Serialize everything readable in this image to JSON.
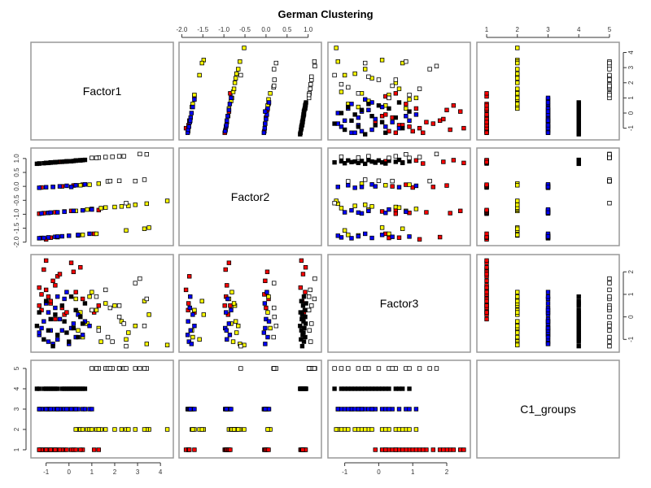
{
  "chart_data": {
    "type": "scatter",
    "title": "German Clustering",
    "variables": [
      "Factor1",
      "Factor2",
      "Factor3",
      "C1_groups"
    ],
    "ranges": [
      [
        -1.45,
        4.35
      ],
      [
        -1.95,
        1.2
      ],
      [
        -1.35,
        2.55
      ],
      [
        0.84,
        5.16
      ]
    ],
    "ticks": [
      [
        -1,
        0,
        1,
        2,
        3,
        4
      ],
      [
        "-2.0",
        "-1.5",
        "-1.0",
        "-0.5",
        "0.0",
        "0.5",
        "1.0"
      ],
      [
        -1,
        0,
        1,
        2
      ],
      [
        1,
        2,
        3,
        4,
        5
      ]
    ],
    "group_colors": {
      "1": "#ff0000",
      "2": "#ffff00",
      "3": "#0000ff",
      "4": "#000000",
      "5": "#ffffff"
    },
    "marker": "filled-square-black-border",
    "grid": false,
    "points_columns": [
      "Factor1",
      "Factor2",
      "Factor3",
      "C1_groups"
    ],
    "points": [
      [
        -1.2,
        -1.85,
        0.3,
        1
      ],
      [
        -1.0,
        -1.9,
        1.2,
        1
      ],
      [
        -0.8,
        -1.84,
        0.6,
        1
      ],
      [
        -0.5,
        -1.82,
        1.8,
        1
      ],
      [
        1.1,
        -1.7,
        0.2,
        1
      ],
      [
        -1.3,
        -0.98,
        0.5,
        1
      ],
      [
        -1.1,
        -0.96,
        2.1,
        1
      ],
      [
        -0.9,
        -0.95,
        0.9,
        1
      ],
      [
        -0.6,
        -0.93,
        1.4,
        1
      ],
      [
        -0.2,
        -0.9,
        0.1,
        1
      ],
      [
        0.1,
        -0.88,
        2.4,
        1
      ],
      [
        -1.2,
        -0.04,
        1.0,
        1
      ],
      [
        -0.7,
        -0.02,
        1.6,
        1
      ],
      [
        -0.3,
        0.0,
        0.4,
        1
      ],
      [
        0.2,
        0.03,
        2.0,
        1
      ],
      [
        0.6,
        0.06,
        0.8,
        1
      ],
      [
        -1.3,
        0.82,
        1.3,
        1
      ],
      [
        -1.0,
        0.84,
        2.5,
        1
      ],
      [
        -0.8,
        0.86,
        0.7,
        1
      ],
      [
        -0.4,
        0.88,
        1.9,
        1
      ],
      [
        -0.1,
        0.9,
        0.2,
        1
      ],
      [
        0.3,
        0.93,
        1.1,
        1
      ],
      [
        0.5,
        0.94,
        2.2,
        1
      ],
      [
        -0.6,
        0.87,
        -0.1,
        1
      ],
      [
        1.3,
        -0.85,
        0.5,
        1
      ],
      [
        0.4,
        -1.76,
        -0.6,
        2
      ],
      [
        1.2,
        -1.7,
        0.3,
        2
      ],
      [
        2.5,
        -1.58,
        -1.0,
        2
      ],
      [
        3.5,
        -1.48,
        0.1,
        2
      ],
      [
        0.3,
        -0.88,
        0.8,
        2
      ],
      [
        0.8,
        -0.83,
        -0.3,
        2
      ],
      [
        1.4,
        -0.78,
        -1.1,
        2
      ],
      [
        2.0,
        -0.74,
        0.5,
        2
      ],
      [
        2.6,
        -0.7,
        -0.7,
        2
      ],
      [
        3.4,
        -0.62,
        -1.2,
        2
      ],
      [
        4.3,
        -0.52,
        -1.25,
        2
      ],
      [
        0.9,
        0.06,
        0.9,
        2
      ],
      [
        1.3,
        0.1,
        -0.5,
        2
      ],
      [
        0.5,
        0.04,
        0.2,
        2
      ],
      [
        1.0,
        -0.81,
        1.1,
        2
      ],
      [
        2.3,
        -0.72,
        -0.2,
        2
      ],
      [
        0.6,
        -1.74,
        -0.9,
        2
      ],
      [
        1.6,
        -0.76,
        0.6,
        2
      ],
      [
        2.9,
        -0.66,
        -0.4,
        2
      ],
      [
        3.3,
        -1.52,
        0.7,
        2
      ],
      [
        -1.3,
        -1.86,
        -0.8,
        3
      ],
      [
        -1.1,
        -1.85,
        -0.2,
        3
      ],
      [
        -0.9,
        -1.83,
        -1.1,
        3
      ],
      [
        -0.6,
        -1.81,
        0.4,
        3
      ],
      [
        -0.3,
        -1.79,
        -0.6,
        3
      ],
      [
        0.0,
        -1.77,
        -1.2,
        3
      ],
      [
        0.4,
        -1.74,
        0.1,
        3
      ],
      [
        0.9,
        -1.7,
        -0.4,
        3
      ],
      [
        -1.2,
        -0.97,
        -0.5,
        3
      ],
      [
        -0.9,
        -0.95,
        0.2,
        3
      ],
      [
        -0.5,
        -0.93,
        -1.0,
        3
      ],
      [
        -0.2,
        -0.91,
        0.8,
        3
      ],
      [
        0.2,
        -0.88,
        -0.3,
        3
      ],
      [
        0.6,
        -0.86,
        -0.8,
        3
      ],
      [
        1.0,
        -0.83,
        0.3,
        3
      ],
      [
        -1.3,
        -0.05,
        -0.7,
        3
      ],
      [
        -1.0,
        -0.03,
        0.6,
        3
      ],
      [
        -0.7,
        -0.02,
        -1.2,
        3
      ],
      [
        -0.4,
        0.0,
        -0.1,
        3
      ],
      [
        -0.1,
        0.02,
        1.1,
        3
      ],
      [
        0.3,
        0.04,
        -0.9,
        3
      ],
      [
        0.7,
        0.07,
        -0.2,
        3
      ],
      [
        -0.8,
        -0.94,
        -0.6,
        3
      ],
      [
        -0.5,
        -1.8,
        0.9,
        3
      ],
      [
        0.1,
        -0.02,
        -0.5,
        3
      ],
      [
        -1.4,
        0.81,
        -0.4,
        4
      ],
      [
        -1.3,
        0.82,
        0.2,
        4
      ],
      [
        -1.1,
        0.83,
        -1.0,
        4
      ],
      [
        -1.0,
        0.84,
        0.7,
        4
      ],
      [
        -0.9,
        0.84,
        -0.6,
        4
      ],
      [
        -0.7,
        0.86,
        -1.3,
        4
      ],
      [
        -0.6,
        0.86,
        0.1,
        4
      ],
      [
        -0.5,
        0.87,
        -0.8,
        4
      ],
      [
        -0.3,
        0.88,
        0.5,
        4
      ],
      [
        -0.2,
        0.89,
        -0.2,
        4
      ],
      [
        0.0,
        0.9,
        -1.1,
        4
      ],
      [
        0.1,
        0.9,
        0.9,
        4
      ],
      [
        0.2,
        0.91,
        -0.5,
        4
      ],
      [
        0.3,
        0.92,
        0.3,
        4
      ],
      [
        0.4,
        0.93,
        -0.9,
        4
      ],
      [
        0.5,
        0.93,
        0.0,
        4
      ],
      [
        0.6,
        0.94,
        -0.3,
        4
      ],
      [
        0.7,
        0.95,
        0.6,
        4
      ],
      [
        -0.8,
        0.85,
        -0.1,
        4
      ],
      [
        -0.1,
        0.89,
        -0.7,
        4
      ],
      [
        1.0,
        1.02,
        0.3,
        5
      ],
      [
        1.3,
        1.03,
        -0.6,
        5
      ],
      [
        1.6,
        1.05,
        1.2,
        5
      ],
      [
        1.9,
        1.06,
        -1.1,
        5
      ],
      [
        2.2,
        1.08,
        0.5,
        5
      ],
      [
        2.4,
        1.08,
        -0.3,
        5
      ],
      [
        3.1,
        1.16,
        1.7,
        5
      ],
      [
        3.4,
        1.15,
        0.8,
        5
      ],
      [
        1.7,
        0.18,
        -0.9,
        5
      ],
      [
        2.2,
        0.2,
        0.0,
        5
      ],
      [
        2.9,
        0.19,
        1.5,
        5
      ],
      [
        3.3,
        0.24,
        -0.4,
        5
      ],
      [
        2.5,
        -0.6,
        -1.3,
        5
      ],
      [
        1.2,
        1.02,
        0.9,
        5
      ],
      [
        1.8,
        0.19,
        0.4,
        5
      ]
    ]
  }
}
